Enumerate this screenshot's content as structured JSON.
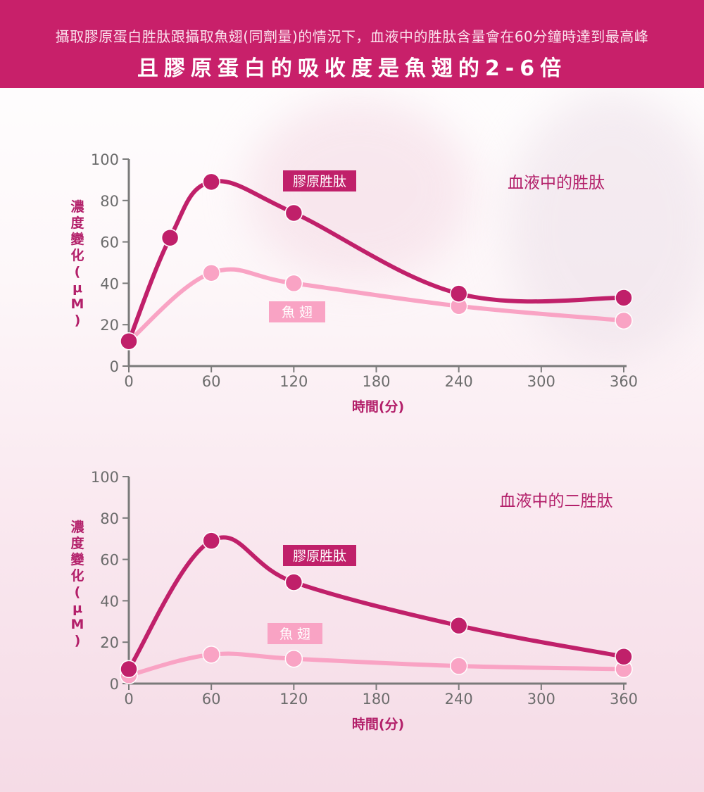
{
  "header": {
    "subtitle": "攝取膠原蛋白胜肽跟攝取魚翅(同劑量)的情況下，血液中的胜肽含量會在60分鐘時達到最高峰",
    "title": "且膠原蛋白的吸收度是魚翅的2-6倍"
  },
  "colors": {
    "header_bg": "#c8206a",
    "collagen": "#c0206a",
    "shark_fin": "#f9a3c4",
    "axis": "#7a7a7a"
  },
  "chart_data": [
    {
      "type": "line",
      "title": "血液中的胜肽",
      "xlabel": "時間(分)",
      "ylabel": "濃度變化(μM)",
      "xlim": [
        0,
        360
      ],
      "ylim": [
        0,
        100
      ],
      "x_ticks": [
        "0",
        "60",
        "120",
        "180",
        "240",
        "300",
        "360"
      ],
      "y_ticks": [
        "0",
        "20",
        "40",
        "60",
        "80",
        "100"
      ],
      "series": [
        {
          "name": "膠原胜肽",
          "color": "#c0206a",
          "x": [
            0,
            30,
            60,
            120,
            240,
            360
          ],
          "y": [
            12,
            62,
            89,
            74,
            35,
            33
          ]
        },
        {
          "name": "魚 翅",
          "color": "#f9a3c4",
          "x": [
            0,
            60,
            120,
            240,
            360
          ],
          "y": [
            12,
            45,
            40,
            29,
            22
          ]
        }
      ]
    },
    {
      "type": "line",
      "title": "血液中的二胜肽",
      "xlabel": "時間(分)",
      "ylabel": "濃度變化(μM)",
      "xlim": [
        0,
        360
      ],
      "ylim": [
        0,
        100
      ],
      "x_ticks": [
        "0",
        "60",
        "120",
        "180",
        "240",
        "300",
        "360"
      ],
      "y_ticks": [
        "0",
        "20",
        "40",
        "60",
        "80",
        "100"
      ],
      "series": [
        {
          "name": "膠原胜肽",
          "color": "#c0206a",
          "x": [
            0,
            60,
            120,
            240,
            360
          ],
          "y": [
            7,
            69,
            49,
            28,
            13
          ]
        },
        {
          "name": "魚 翅",
          "color": "#f9a3c4",
          "x": [
            0,
            60,
            120,
            240,
            360
          ],
          "y": [
            4,
            14,
            12,
            8.5,
            7
          ]
        }
      ]
    }
  ]
}
